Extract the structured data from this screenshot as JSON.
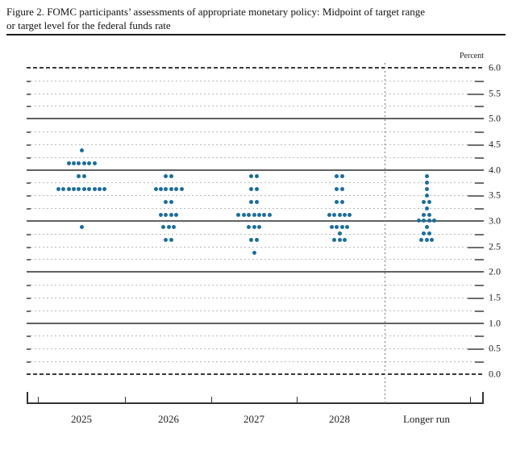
{
  "figure": {
    "title_line1": "Figure 2. FOMC participants’ assessments of appropriate monetary policy: Midpoint of target range",
    "title_line2": "or target level for the federal funds rate"
  },
  "chart_data": {
    "type": "scatter",
    "subtype": "fomc-dot-plot",
    "title": "Figure 2. FOMC participants’ assessments of appropriate monetary policy: Midpoint of target range or target level for the federal funds rate",
    "unit_label": "Percent",
    "ylabel": "Percent",
    "xlabel": "",
    "ylim": [
      0.0,
      6.0
    ],
    "y_label_step": 0.5,
    "y_grid_step": 0.25,
    "grid": true,
    "legend_position": "none",
    "y_tick_labels": [
      "6.0",
      "5.5",
      "5.0",
      "4.5",
      "4.0",
      "3.5",
      "3.0",
      "2.5",
      "2.0",
      "1.5",
      "1.0",
      "0.5",
      "0.0"
    ],
    "categories": [
      "2025",
      "2026",
      "2027",
      "2028",
      "Longer run"
    ],
    "series": [
      {
        "name": "2025",
        "dots": [
          {
            "rate": 4.375,
            "count": 1
          },
          {
            "rate": 4.125,
            "count": 6
          },
          {
            "rate": 3.875,
            "count": 2
          },
          {
            "rate": 3.625,
            "count": 10
          },
          {
            "rate": 2.875,
            "count": 1
          }
        ]
      },
      {
        "name": "2026",
        "dots": [
          {
            "rate": 3.875,
            "count": 2
          },
          {
            "rate": 3.625,
            "count": 6
          },
          {
            "rate": 3.375,
            "count": 2
          },
          {
            "rate": 3.125,
            "count": 4
          },
          {
            "rate": 2.875,
            "count": 3
          },
          {
            "rate": 2.625,
            "count": 2
          }
        ]
      },
      {
        "name": "2027",
        "dots": [
          {
            "rate": 3.875,
            "count": 2
          },
          {
            "rate": 3.625,
            "count": 2
          },
          {
            "rate": 3.375,
            "count": 2
          },
          {
            "rate": 3.125,
            "count": 7
          },
          {
            "rate": 2.875,
            "count": 3
          },
          {
            "rate": 2.625,
            "count": 2
          },
          {
            "rate": 2.375,
            "count": 1
          }
        ]
      },
      {
        "name": "2028",
        "dots": [
          {
            "rate": 3.875,
            "count": 2
          },
          {
            "rate": 3.625,
            "count": 2
          },
          {
            "rate": 3.375,
            "count": 2
          },
          {
            "rate": 3.125,
            "count": 5
          },
          {
            "rate": 2.875,
            "count": 4
          },
          {
            "rate": 2.75,
            "count": 1
          },
          {
            "rate": 2.625,
            "count": 3
          }
        ]
      },
      {
        "name": "Longer run",
        "dots": [
          {
            "rate": 3.875,
            "count": 1
          },
          {
            "rate": 3.75,
            "count": 1
          },
          {
            "rate": 3.625,
            "count": 1
          },
          {
            "rate": 3.5,
            "count": 1
          },
          {
            "rate": 3.375,
            "count": 2
          },
          {
            "rate": 3.25,
            "count": 1
          },
          {
            "rate": 3.125,
            "count": 2
          },
          {
            "rate": 3.0,
            "count": 4
          },
          {
            "rate": 2.875,
            "count": 1
          },
          {
            "rate": 2.75,
            "count": 2
          },
          {
            "rate": 2.625,
            "count": 3
          }
        ]
      }
    ],
    "colors": {
      "dot": "#1c6d9c",
      "axis": "#333333",
      "grid_minor": "#b9b9b9",
      "grid_major": "#616161",
      "grid_edge": "#3a3a3a"
    }
  }
}
